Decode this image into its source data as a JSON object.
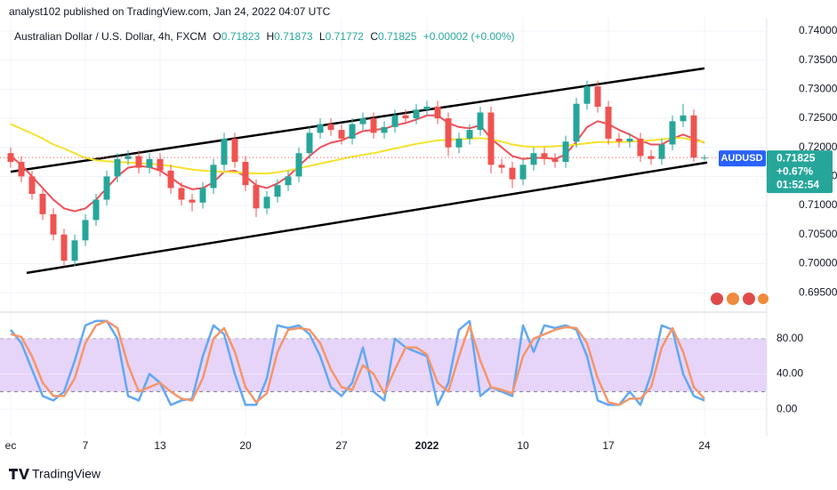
{
  "header": {
    "published": "analyst102 published on TradingView.com, Jan 24, 2022 04:07 UTC",
    "symbol": "Australian Dollar / U.S. Dollar, 4h, FXCM",
    "o_label": "O",
    "h_label": "H",
    "l_label": "L",
    "c_label": "C",
    "change": "+0.00002 (+0.00%)"
  },
  "footer": {
    "brand": "TradingView"
  },
  "chart_data": [
    {
      "type": "candlestick",
      "categories": [
        "ec",
        null,
        null,
        null,
        null,
        null,
        null,
        "7",
        null,
        null,
        null,
        null,
        null,
        null,
        "13",
        null,
        null,
        null,
        null,
        null,
        null,
        null,
        "20",
        null,
        null,
        null,
        null,
        null,
        null,
        null,
        null,
        "27",
        null,
        null,
        null,
        null,
        null,
        null,
        null,
        "2022",
        null,
        null,
        null,
        null,
        null,
        null,
        null,
        null,
        "10",
        null,
        null,
        null,
        null,
        null,
        null,
        null,
        "17",
        null,
        null,
        null,
        null,
        null,
        null,
        null,
        null,
        "24"
      ],
      "open": [
        0.719,
        0.7175,
        0.715,
        0.712,
        0.7085,
        0.705,
        0.7005,
        0.704,
        0.7075,
        0.711,
        0.715,
        0.718,
        0.7185,
        0.7165,
        0.718,
        0.716,
        0.713,
        0.711,
        0.7105,
        0.713,
        0.717,
        0.7215,
        0.7175,
        0.7135,
        0.7095,
        0.7115,
        0.7135,
        0.715,
        0.719,
        0.7225,
        0.724,
        0.723,
        0.7215,
        0.724,
        0.725,
        0.7225,
        0.7235,
        0.7255,
        0.725,
        0.7265,
        0.727,
        0.725,
        0.72,
        0.7215,
        0.723,
        0.726,
        0.717,
        0.7165,
        0.7145,
        0.717,
        0.719,
        0.718,
        0.7175,
        0.721,
        0.7275,
        0.7305,
        0.727,
        0.7215,
        0.721,
        0.7215,
        0.7185,
        0.718,
        0.7205,
        0.7245,
        0.7255,
        0.71823
      ],
      "high": [
        0.72,
        0.7185,
        0.716,
        0.713,
        0.7095,
        0.706,
        0.705,
        0.7085,
        0.712,
        0.716,
        0.719,
        0.7195,
        0.7195,
        0.719,
        0.719,
        0.717,
        0.714,
        0.712,
        0.714,
        0.718,
        0.7225,
        0.7225,
        0.7185,
        0.7145,
        0.7125,
        0.7145,
        0.716,
        0.72,
        0.7235,
        0.725,
        0.725,
        0.724,
        0.725,
        0.726,
        0.726,
        0.7245,
        0.7265,
        0.7265,
        0.7275,
        0.728,
        0.728,
        0.726,
        0.7225,
        0.724,
        0.727,
        0.727,
        0.718,
        0.7175,
        0.718,
        0.72,
        0.72,
        0.719,
        0.722,
        0.7285,
        0.7315,
        0.7315,
        0.728,
        0.7225,
        0.7225,
        0.7225,
        0.7195,
        0.7215,
        0.7255,
        0.7275,
        0.7265,
        0.71873
      ],
      "low": [
        0.7165,
        0.714,
        0.711,
        0.7075,
        0.704,
        0.6995,
        0.6995,
        0.703,
        0.7065,
        0.71,
        0.714,
        0.717,
        0.7155,
        0.7155,
        0.715,
        0.712,
        0.71,
        0.709,
        0.7095,
        0.712,
        0.716,
        0.7165,
        0.7125,
        0.708,
        0.7085,
        0.7105,
        0.7125,
        0.714,
        0.718,
        0.7215,
        0.722,
        0.7205,
        0.7205,
        0.723,
        0.7215,
        0.7215,
        0.7225,
        0.724,
        0.724,
        0.7255,
        0.724,
        0.7185,
        0.719,
        0.7205,
        0.722,
        0.7155,
        0.7155,
        0.713,
        0.7135,
        0.716,
        0.717,
        0.7165,
        0.7165,
        0.72,
        0.7265,
        0.726,
        0.7205,
        0.72,
        0.72,
        0.7175,
        0.717,
        0.717,
        0.7195,
        0.7235,
        0.7175,
        0.71772
      ],
      "close": [
        0.7175,
        0.715,
        0.712,
        0.7085,
        0.705,
        0.7005,
        0.704,
        0.7075,
        0.711,
        0.715,
        0.718,
        0.7185,
        0.7165,
        0.718,
        0.716,
        0.713,
        0.711,
        0.7105,
        0.713,
        0.717,
        0.7215,
        0.7175,
        0.7135,
        0.7095,
        0.7115,
        0.7135,
        0.715,
        0.719,
        0.7225,
        0.724,
        0.723,
        0.7215,
        0.724,
        0.725,
        0.7225,
        0.7235,
        0.7255,
        0.725,
        0.7265,
        0.727,
        0.725,
        0.72,
        0.7215,
        0.723,
        0.726,
        0.717,
        0.7165,
        0.7145,
        0.717,
        0.719,
        0.718,
        0.7175,
        0.721,
        0.7275,
        0.7305,
        0.727,
        0.7215,
        0.721,
        0.7215,
        0.7185,
        0.718,
        0.7205,
        0.7245,
        0.7255,
        0.71823,
        0.71825
      ],
      "up_color": "#26a69a",
      "down_color": "#ef5350",
      "series": [
        {
          "color": "#f0505a",
          "values": [
            0.7185,
            0.717,
            0.715,
            0.713,
            0.711,
            0.7095,
            0.709,
            0.7095,
            0.711,
            0.713,
            0.715,
            0.7165,
            0.7168,
            0.7166,
            0.716,
            0.7148,
            0.7135,
            0.7128,
            0.713,
            0.714,
            0.7158,
            0.716,
            0.715,
            0.7135,
            0.713,
            0.7138,
            0.715,
            0.7168,
            0.7185,
            0.72,
            0.7208,
            0.7212,
            0.722,
            0.7228,
            0.723,
            0.7232,
            0.7238,
            0.7242,
            0.7248,
            0.7255,
            0.7255,
            0.7242,
            0.7235,
            0.7233,
            0.7238,
            0.7215,
            0.72,
            0.7185,
            0.718,
            0.7182,
            0.7182,
            0.718,
            0.7188,
            0.721,
            0.7235,
            0.7245,
            0.724,
            0.723,
            0.7222,
            0.7212,
            0.7205,
            0.7205,
            0.7215,
            0.7222,
            0.7215,
            0.7208
          ]
        },
        {
          "color": "#f5e22c",
          "values": [
            0.724,
            0.7232,
            0.7224,
            0.7215,
            0.7205,
            0.7198,
            0.719,
            0.7182,
            0.7178,
            0.7176,
            0.7175,
            0.7174,
            0.7173,
            0.7172,
            0.717,
            0.7168,
            0.7165,
            0.7162,
            0.716,
            0.7159,
            0.7158,
            0.7157,
            0.7156,
            0.7155,
            0.7155,
            0.7157,
            0.716,
            0.7164,
            0.7168,
            0.7172,
            0.7176,
            0.718,
            0.7184,
            0.7187,
            0.719,
            0.7194,
            0.7198,
            0.7202,
            0.7206,
            0.7209,
            0.7212,
            0.7213,
            0.7214,
            0.7215,
            0.7216,
            0.7214,
            0.721,
            0.7205,
            0.7202,
            0.7201,
            0.7201,
            0.7202,
            0.7203,
            0.7205,
            0.7207,
            0.7209,
            0.7209,
            0.7209,
            0.721,
            0.7211,
            0.7212,
            0.7214,
            0.7216,
            0.7216,
            0.7212,
            0.7209
          ]
        }
      ],
      "trendlines": [
        {
          "start_index": 0,
          "start": 0.7158,
          "end_index": 65,
          "end": 0.7336
        },
        {
          "start_index": 1.5,
          "start": 0.6984,
          "end_index": 65.25,
          "end": 0.7174
        }
      ],
      "trendline_color": "#000000",
      "badge": {
        "symbol": "AUDUSD",
        "change": "+0.67%",
        "countdown": "01:52:54",
        "symbol_color": "#2962ff"
      },
      "ylim": [
        0.6918,
        0.7423
      ],
      "yticks": [
        {
          "value": 0.695,
          "label": "0.69500"
        },
        {
          "value": 0.7,
          "label": "0.70000"
        },
        {
          "value": 0.705,
          "label": "0.70500"
        },
        {
          "value": 0.71,
          "label": "0.71000"
        },
        {
          "value": 0.715,
          "label": "0.71500"
        },
        {
          "value": 0.72,
          "label": "0.72000"
        },
        {
          "value": 0.725,
          "label": "0.72500"
        },
        {
          "value": 0.73,
          "label": "0.73000"
        },
        {
          "value": 0.735,
          "label": "0.73500"
        },
        {
          "value": 0.74,
          "label": "0.74000"
        }
      ],
      "grid": true
    },
    {
      "type": "line",
      "series": [
        {
          "color": "#62a8f2",
          "values": [
            90,
            75,
            45,
            15,
            10,
            20,
            55,
            95,
            100,
            100,
            80,
            15,
            10,
            40,
            30,
            5,
            10,
            12,
            60,
            95,
            85,
            40,
            5,
            5,
            35,
            95,
            92,
            95,
            85,
            60,
            25,
            15,
            30,
            70,
            20,
            10,
            80,
            70,
            65,
            60,
            5,
            30,
            90,
            100,
            15,
            25,
            20,
            15,
            95,
            65,
            95,
            92,
            95,
            90,
            60,
            10,
            5,
            5,
            20,
            5,
            40,
            95,
            90,
            40,
            15,
            10
          ]
        },
        {
          "color": "#f5966a",
          "values": [
            85,
            82,
            60,
            30,
            15,
            15,
            35,
            75,
            95,
            100,
            92,
            50,
            20,
            25,
            30,
            20,
            12,
            10,
            35,
            80,
            92,
            65,
            25,
            8,
            18,
            65,
            90,
            92,
            90,
            75,
            45,
            25,
            22,
            50,
            40,
            18,
            45,
            70,
            70,
            62,
            30,
            20,
            60,
            95,
            55,
            25,
            22,
            18,
            60,
            80,
            85,
            90,
            93,
            92,
            75,
            35,
            8,
            5,
            12,
            12,
            25,
            70,
            92,
            65,
            25,
            12
          ]
        }
      ],
      "band": [
        20,
        80
      ],
      "band_color": "#e3cdf8",
      "ylim": [
        -30,
        109
      ],
      "yticks": [
        {
          "value": 0,
          "label": "0.00"
        },
        {
          "value": 40,
          "label": "40.00"
        },
        {
          "value": 80,
          "label": "80.00"
        }
      ],
      "grid": true
    }
  ]
}
